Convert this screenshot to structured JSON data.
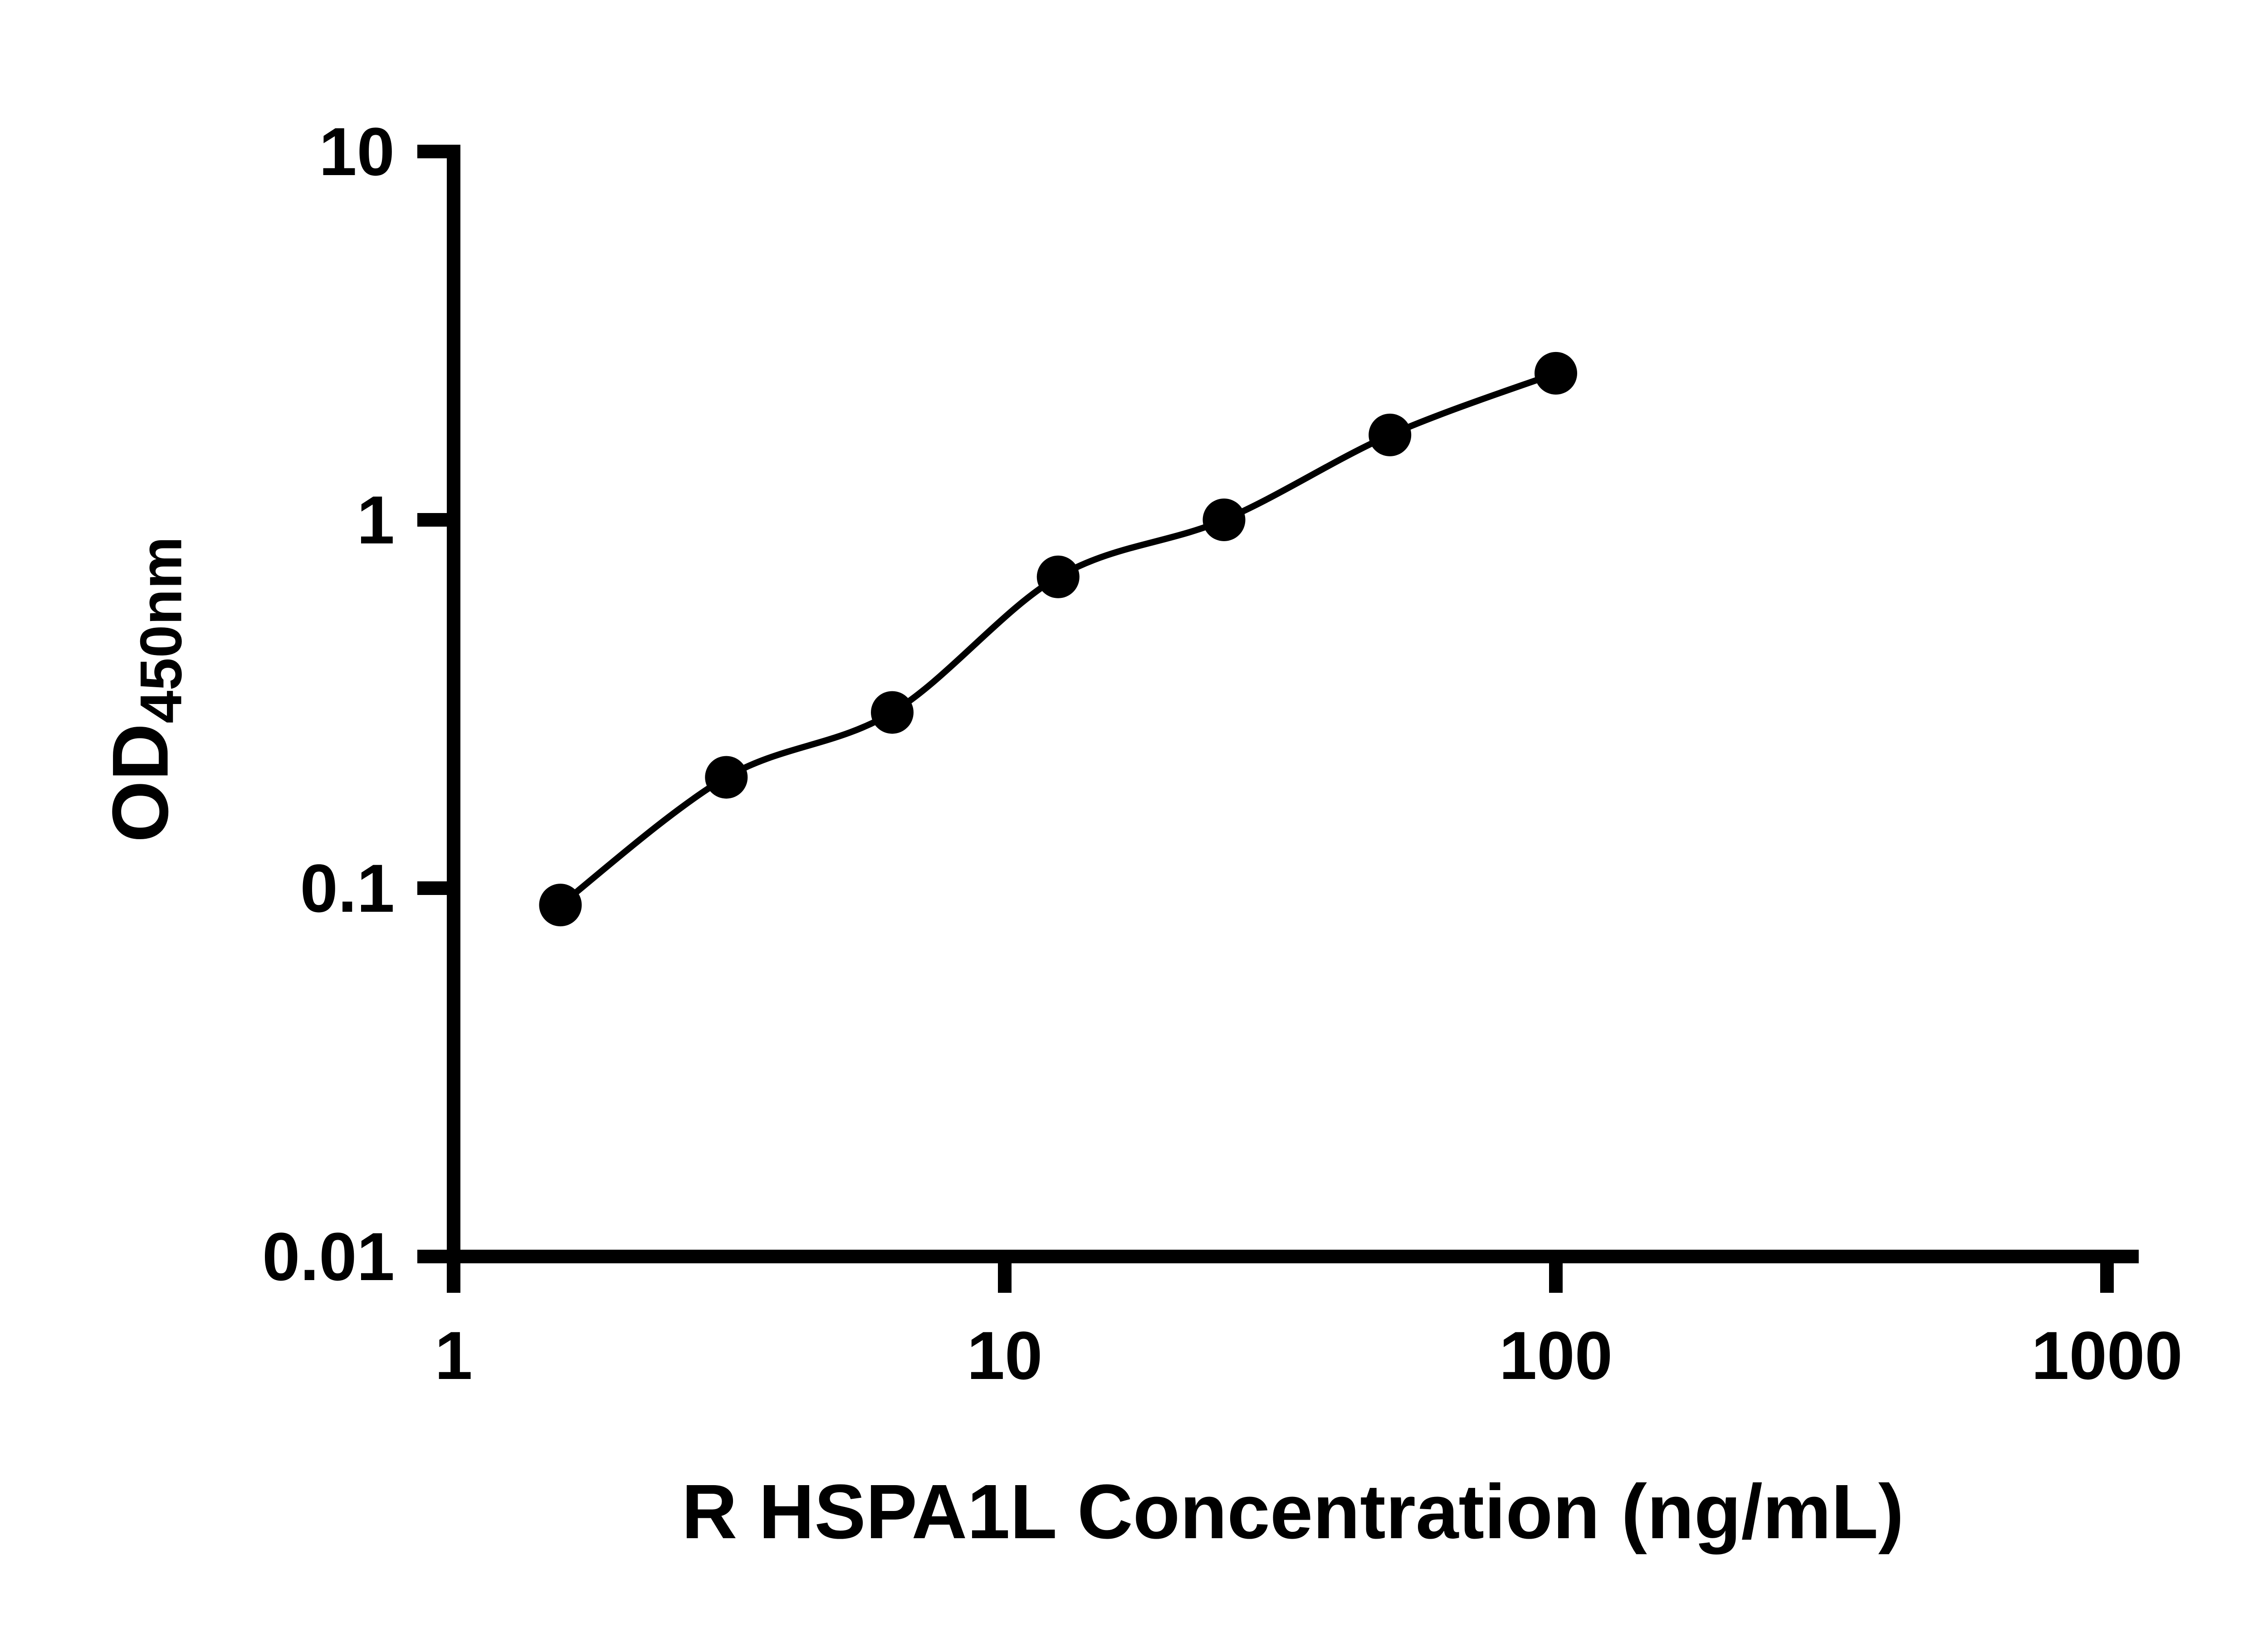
{
  "page": {
    "background": "#ffffff"
  },
  "chart_data": {
    "type": "scatter",
    "title": "",
    "xlabel": "R HSPA1L Concentration (ng/mL)",
    "ylabel_main": "OD",
    "ylabel_sub": "450nm",
    "x_scale": "log",
    "y_scale": "log",
    "xlim": [
      1,
      1000
    ],
    "ylim": [
      0.01,
      10
    ],
    "x_ticks": [
      1,
      10,
      100,
      1000
    ],
    "x_tick_labels": [
      "1",
      "10",
      "100",
      "1000"
    ],
    "y_ticks": [
      0.01,
      0.1,
      1,
      10
    ],
    "y_tick_labels": [
      "0.01",
      "0.1",
      "1",
      "10"
    ],
    "grid": false,
    "legend": false,
    "curve_fit": "smooth",
    "series": [
      {
        "marker": "circle",
        "color": "#000000",
        "x": [
          1.5625,
          3.125,
          6.25,
          12.5,
          25,
          50,
          100
        ],
        "y": [
          0.09,
          0.2,
          0.3,
          0.7,
          1.0,
          1.7,
          2.5
        ]
      }
    ]
  },
  "style": {
    "axis_color": "#000000",
    "point_color": "#000000",
    "curve_color": "#000000"
  }
}
